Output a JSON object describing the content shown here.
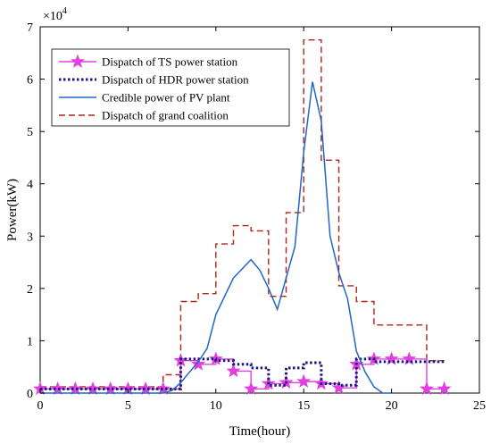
{
  "chart_data": {
    "type": "line",
    "title": "",
    "xlabel": "Time(hour)",
    "ylabel": "Power(kW)",
    "y_multiplier_label": "×10",
    "y_multiplier_exponent": "4",
    "xlim": [
      0,
      25
    ],
    "ylim": [
      0,
      7
    ],
    "x_ticks": [
      0,
      5,
      10,
      15,
      20,
      25
    ],
    "y_ticks": [
      0,
      1,
      2,
      3,
      4,
      5,
      6,
      7
    ],
    "y_scale_factor": 10000,
    "grid": false,
    "legend_position": "top-left",
    "series": [
      {
        "name": "Dispatch of TS power station",
        "style": "stairs",
        "marker": "star",
        "color": "#e040e0",
        "x": [
          0,
          1,
          2,
          3,
          4,
          5,
          6,
          7,
          8,
          9,
          10,
          11,
          12,
          13,
          14,
          15,
          16,
          17,
          18,
          19,
          20,
          21,
          22,
          23
        ],
        "values": [
          0.08,
          0.08,
          0.08,
          0.08,
          0.08,
          0.08,
          0.08,
          0.08,
          0.62,
          0.55,
          0.65,
          0.42,
          0.08,
          0.18,
          0.2,
          0.22,
          0.18,
          0.1,
          0.55,
          0.65,
          0.65,
          0.65,
          0.08,
          0.08
        ]
      },
      {
        "name": "Dispatch of HDR power station",
        "style": "stairs-dotted",
        "color": "#1a1a80",
        "x": [
          0,
          1,
          2,
          3,
          4,
          5,
          6,
          7,
          8,
          9,
          10,
          11,
          12,
          13,
          14,
          15,
          16,
          17,
          18,
          19,
          20,
          21,
          22,
          23
        ],
        "values": [
          0.08,
          0.08,
          0.08,
          0.08,
          0.08,
          0.08,
          0.08,
          0.08,
          0.65,
          0.65,
          0.62,
          0.55,
          0.48,
          0.15,
          0.48,
          0.58,
          0.18,
          0.15,
          0.65,
          0.6,
          0.6,
          0.6,
          0.6,
          0.6
        ]
      },
      {
        "name": "Credible power of PV plant",
        "style": "line",
        "color": "#2166c6",
        "x": [
          0,
          6,
          7,
          7.5,
          8,
          8.5,
          9,
          9.5,
          10,
          11,
          12,
          12.5,
          13,
          13.5,
          14,
          14.5,
          15,
          15.5,
          16,
          16.5,
          17,
          17.5,
          18,
          18.5,
          19,
          19.5,
          20
        ],
        "values": [
          0,
          0,
          0,
          0.05,
          0.2,
          0.4,
          0.6,
          0.85,
          1.5,
          2.2,
          2.55,
          2.35,
          2.0,
          1.6,
          2.2,
          2.8,
          4.6,
          5.95,
          5.2,
          3.0,
          2.3,
          1.8,
          0.8,
          0.4,
          0.12,
          0,
          0
        ]
      },
      {
        "name": "Dispatch  of grand coalition",
        "style": "stairs-dashed",
        "color": "#b02418",
        "x": [
          0,
          1,
          2,
          3,
          4,
          5,
          6,
          7,
          8,
          9,
          10,
          11,
          12,
          13,
          14,
          15,
          16,
          17,
          18,
          19,
          20,
          21,
          22,
          23
        ],
        "values": [
          0.12,
          0.12,
          0.12,
          0.12,
          0.12,
          0.12,
          0.12,
          0.35,
          1.75,
          1.9,
          2.85,
          3.2,
          3.1,
          1.85,
          3.45,
          6.75,
          4.45,
          2.05,
          1.75,
          1.3,
          1.3,
          1.3,
          0.62,
          0.62
        ]
      }
    ]
  }
}
